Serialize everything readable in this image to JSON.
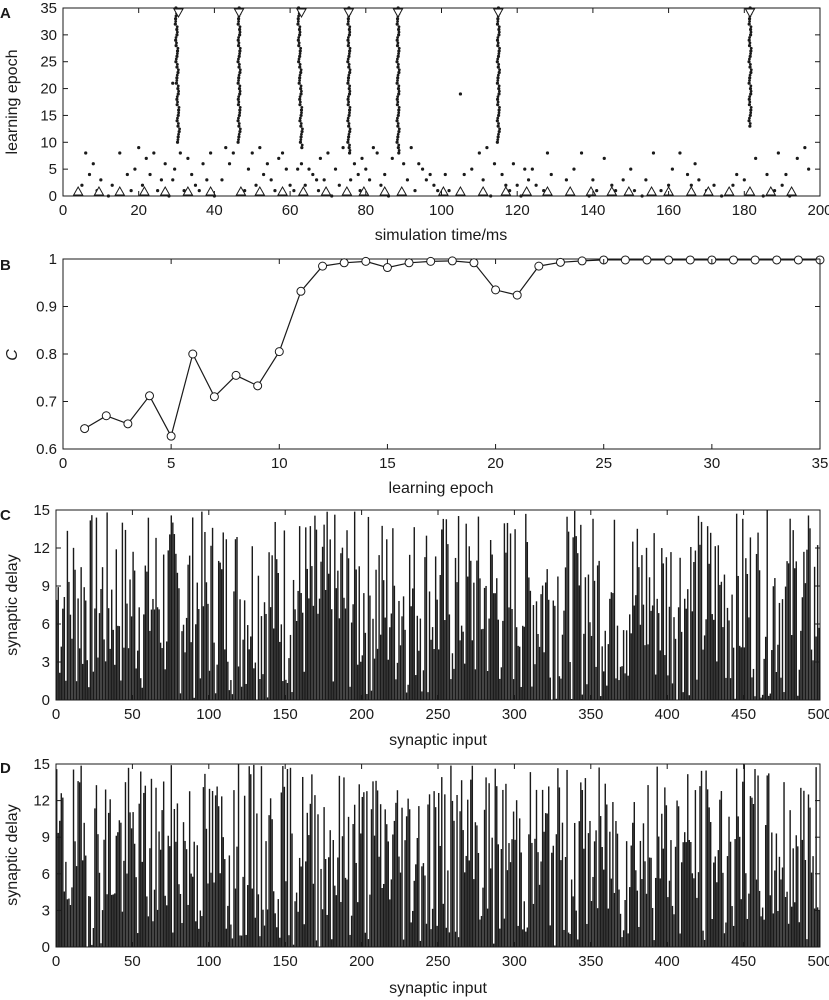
{
  "figure": {
    "panels": [
      {
        "id": "A",
        "letter": "A",
        "chart_data": {
          "type": "scatter",
          "xlabel": "simulation time/ms",
          "ylabel": "learning epoch",
          "xlim": [
            0,
            200
          ],
          "ylim": [
            0,
            35
          ],
          "xticks": [
            0,
            20,
            40,
            60,
            80,
            100,
            120,
            140,
            160,
            180,
            200
          ],
          "yticks": [
            0,
            5,
            10,
            15,
            20,
            25,
            30,
            35
          ],
          "grid": false,
          "input_spikes_epoch0_up_triangles": [
            4,
            9.5,
            15,
            21.5,
            27,
            33,
            39,
            47,
            52,
            58,
            63.5,
            69.5,
            75,
            79.5,
            85,
            89.5,
            100.5,
            105,
            111,
            117,
            122.5,
            128,
            134,
            139.5,
            145,
            149.5,
            155.5,
            160,
            166,
            170.5,
            176,
            181.5,
            187,
            192.5
          ],
          "target_spikes_epoch35_down_triangles": [
            30.5,
            46.5,
            63,
            75.5,
            88.5,
            115,
            181.5
          ],
          "converged_spike_trains": [
            {
              "x_start": 30.5,
              "x_end": 29.8,
              "epoch_start": 10,
              "epoch_end": 35
            },
            {
              "x_start": 46.5,
              "x_end": 46.5,
              "epoch_start": 10,
              "epoch_end": 35
            },
            {
              "x_start": 63,
              "x_end": 62.2,
              "epoch_start": 9,
              "epoch_end": 35
            },
            {
              "x_start": 75.5,
              "x_end": 75.5,
              "epoch_start": 8,
              "epoch_end": 35
            },
            {
              "x_start": 88.5,
              "x_end": 88.5,
              "epoch_start": 8,
              "epoch_end": 35
            },
            {
              "x_start": 115,
              "x_end": 115,
              "epoch_start": 10,
              "epoch_end": 35
            },
            {
              "x_start": 181.5,
              "x_end": 181.5,
              "epoch_start": 13,
              "epoch_end": 35
            }
          ],
          "scattered_spikes": [
            [
              4,
              1
            ],
            [
              5,
              2
            ],
            [
              6,
              8
            ],
            [
              7,
              4
            ],
            [
              8,
              6
            ],
            [
              9,
              1
            ],
            [
              10,
              3
            ],
            [
              12,
              0
            ],
            [
              13,
              2
            ],
            [
              15,
              8
            ],
            [
              17,
              4
            ],
            [
              18,
              1
            ],
            [
              19,
              5
            ],
            [
              20,
              9
            ],
            [
              21,
              2
            ],
            [
              22,
              7
            ],
            [
              23,
              4
            ],
            [
              24,
              8
            ],
            [
              25,
              1
            ],
            [
              26,
              3
            ],
            [
              27,
              6
            ],
            [
              28,
              0
            ],
            [
              29,
              3
            ],
            [
              29,
              21
            ],
            [
              29.5,
              5
            ],
            [
              31,
              8
            ],
            [
              32,
              1
            ],
            [
              33,
              7
            ],
            [
              34,
              4
            ],
            [
              35,
              2
            ],
            [
              36,
              1
            ],
            [
              37,
              6
            ],
            [
              38,
              3
            ],
            [
              39,
              8
            ],
            [
              40,
              0
            ],
            [
              42,
              3
            ],
            [
              43,
              9
            ],
            [
              44,
              6
            ],
            [
              45,
              8
            ],
            [
              48,
              1
            ],
            [
              49,
              5
            ],
            [
              50,
              8
            ],
            [
              51,
              2
            ],
            [
              52,
              9
            ],
            [
              53,
              4
            ],
            [
              54,
              6
            ],
            [
              55,
              3
            ],
            [
              56,
              1
            ],
            [
              57,
              7
            ],
            [
              58,
              8
            ],
            [
              59,
              5
            ],
            [
              60,
              2
            ],
            [
              61,
              1
            ],
            [
              62,
              5
            ],
            [
              63,
              6
            ],
            [
              64,
              2
            ],
            [
              65,
              5
            ],
            [
              66,
              4
            ],
            [
              67,
              3
            ],
            [
              67.5,
              1
            ],
            [
              68,
              7
            ],
            [
              69,
              3
            ],
            [
              70,
              8
            ],
            [
              71,
              0
            ],
            [
              72,
              5
            ],
            [
              73,
              2
            ],
            [
              74,
              9
            ],
            [
              76,
              3
            ],
            [
              77,
              6
            ],
            [
              78,
              4
            ],
            [
              78.5,
              1
            ],
            [
              79,
              7
            ],
            [
              80,
              5
            ],
            [
              81,
              3
            ],
            [
              82,
              9
            ],
            [
              83,
              8
            ],
            [
              84,
              2
            ],
            [
              85,
              4
            ],
            [
              86,
              0
            ],
            [
              87,
              7
            ],
            [
              90,
              6
            ],
            [
              91,
              3
            ],
            [
              92,
              9
            ],
            [
              93,
              1
            ],
            [
              94,
              6
            ],
            [
              95,
              5
            ],
            [
              96,
              3
            ],
            [
              97,
              4
            ],
            [
              98,
              2
            ],
            [
              99,
              1
            ],
            [
              101,
              4
            ],
            [
              102,
              1
            ],
            [
              105,
              19
            ],
            [
              106,
              4
            ],
            [
              108,
              5
            ],
            [
              110,
              8
            ],
            [
              111,
              3
            ],
            [
              112,
              9
            ],
            [
              113,
              0
            ],
            [
              114,
              6
            ],
            [
              116,
              4
            ],
            [
              117,
              2
            ],
            [
              118,
              1
            ],
            [
              119,
              6
            ],
            [
              120,
              2
            ],
            [
              121,
              0
            ],
            [
              122,
              5
            ],
            [
              123,
              3
            ],
            [
              124,
              5
            ],
            [
              125,
              2
            ],
            [
              127,
              1
            ],
            [
              128,
              8
            ],
            [
              129,
              4
            ],
            [
              133,
              3
            ],
            [
              134,
              1
            ],
            [
              135,
              5
            ],
            [
              137,
              8
            ],
            [
              139,
              0
            ],
            [
              140,
              3
            ],
            [
              141,
              1
            ],
            [
              143,
              7
            ],
            [
              145,
              2
            ],
            [
              146,
              1
            ],
            [
              148,
              3
            ],
            [
              150,
              5
            ],
            [
              151,
              1
            ],
            [
              153,
              0
            ],
            [
              154,
              3
            ],
            [
              156,
              8
            ],
            [
              158,
              1
            ],
            [
              160,
              2
            ],
            [
              161,
              5
            ],
            [
              163,
              8
            ],
            [
              165,
              4
            ],
            [
              166,
              2
            ],
            [
              167,
              6
            ],
            [
              168,
              3
            ],
            [
              170,
              1
            ],
            [
              172,
              2
            ],
            [
              174,
              0
            ],
            [
              177,
              2
            ],
            [
              178,
              4
            ],
            [
              180,
              3
            ],
            [
              183,
              7
            ],
            [
              185,
              0
            ],
            [
              186,
              4
            ],
            [
              188,
              1
            ],
            [
              189,
              8
            ],
            [
              190,
              2
            ],
            [
              191,
              4
            ],
            [
              192,
              0
            ],
            [
              194,
              7
            ],
            [
              196,
              9
            ],
            [
              197,
              5
            ]
          ]
        }
      },
      {
        "id": "B",
        "letter": "B",
        "chart_data": {
          "type": "line",
          "xlabel": "learning epoch",
          "ylabel": "C",
          "xlim": [
            0,
            35
          ],
          "ylim": [
            0.6,
            1.0
          ],
          "xticks": [
            0,
            5,
            10,
            15,
            20,
            25,
            30,
            35
          ],
          "yticks": [
            0.6,
            0.7,
            0.8,
            0.9,
            1.0
          ],
          "ytick_labels": [
            "0.6",
            "0.7",
            "0.8",
            "0.9",
            "1"
          ],
          "grid": false,
          "x": [
            1,
            2,
            3,
            4,
            5,
            6,
            7,
            8,
            9,
            10,
            11,
            12,
            13,
            14,
            15,
            16,
            17,
            18,
            19,
            20,
            21,
            22,
            23,
            24,
            25,
            26,
            27,
            28,
            29,
            30,
            31,
            32,
            33,
            34,
            35
          ],
          "y": [
            0.643,
            0.67,
            0.653,
            0.712,
            0.627,
            0.8,
            0.71,
            0.755,
            0.733,
            0.805,
            0.932,
            0.985,
            0.992,
            0.995,
            0.982,
            0.992,
            0.995,
            0.996,
            0.992,
            0.935,
            0.924,
            0.985,
            0.993,
            0.996,
            0.998,
            0.998,
            0.998,
            0.998,
            0.998,
            0.998,
            0.998,
            0.998,
            0.998,
            0.998,
            0.998
          ],
          "marker": "circle"
        }
      },
      {
        "id": "C",
        "letter": "C",
        "chart_data": {
          "type": "bar",
          "xlabel": "synaptic input",
          "ylabel": "synaptic delay",
          "xlim": [
            0,
            500
          ],
          "ylim": [
            0,
            15
          ],
          "xticks": [
            0,
            50,
            100,
            150,
            200,
            250,
            300,
            350,
            400,
            450,
            500
          ],
          "yticks": [
            0,
            3,
            6,
            9,
            12,
            15
          ],
          "grid": false,
          "bar_count": 500,
          "values_random_seed": 7
        }
      },
      {
        "id": "D",
        "letter": "D",
        "chart_data": {
          "type": "bar",
          "xlabel": "synaptic input",
          "ylabel": "synaptic delay",
          "xlim": [
            0,
            500
          ],
          "ylim": [
            0,
            15
          ],
          "xticks": [
            0,
            50,
            100,
            150,
            200,
            250,
            300,
            350,
            400,
            450,
            500
          ],
          "yticks": [
            0,
            3,
            6,
            9,
            12,
            15
          ],
          "grid": false,
          "bar_count": 500,
          "values_random_seed": 19
        }
      }
    ]
  },
  "colors": {
    "ink": "#1a1a1a",
    "background": "#ffffff"
  }
}
